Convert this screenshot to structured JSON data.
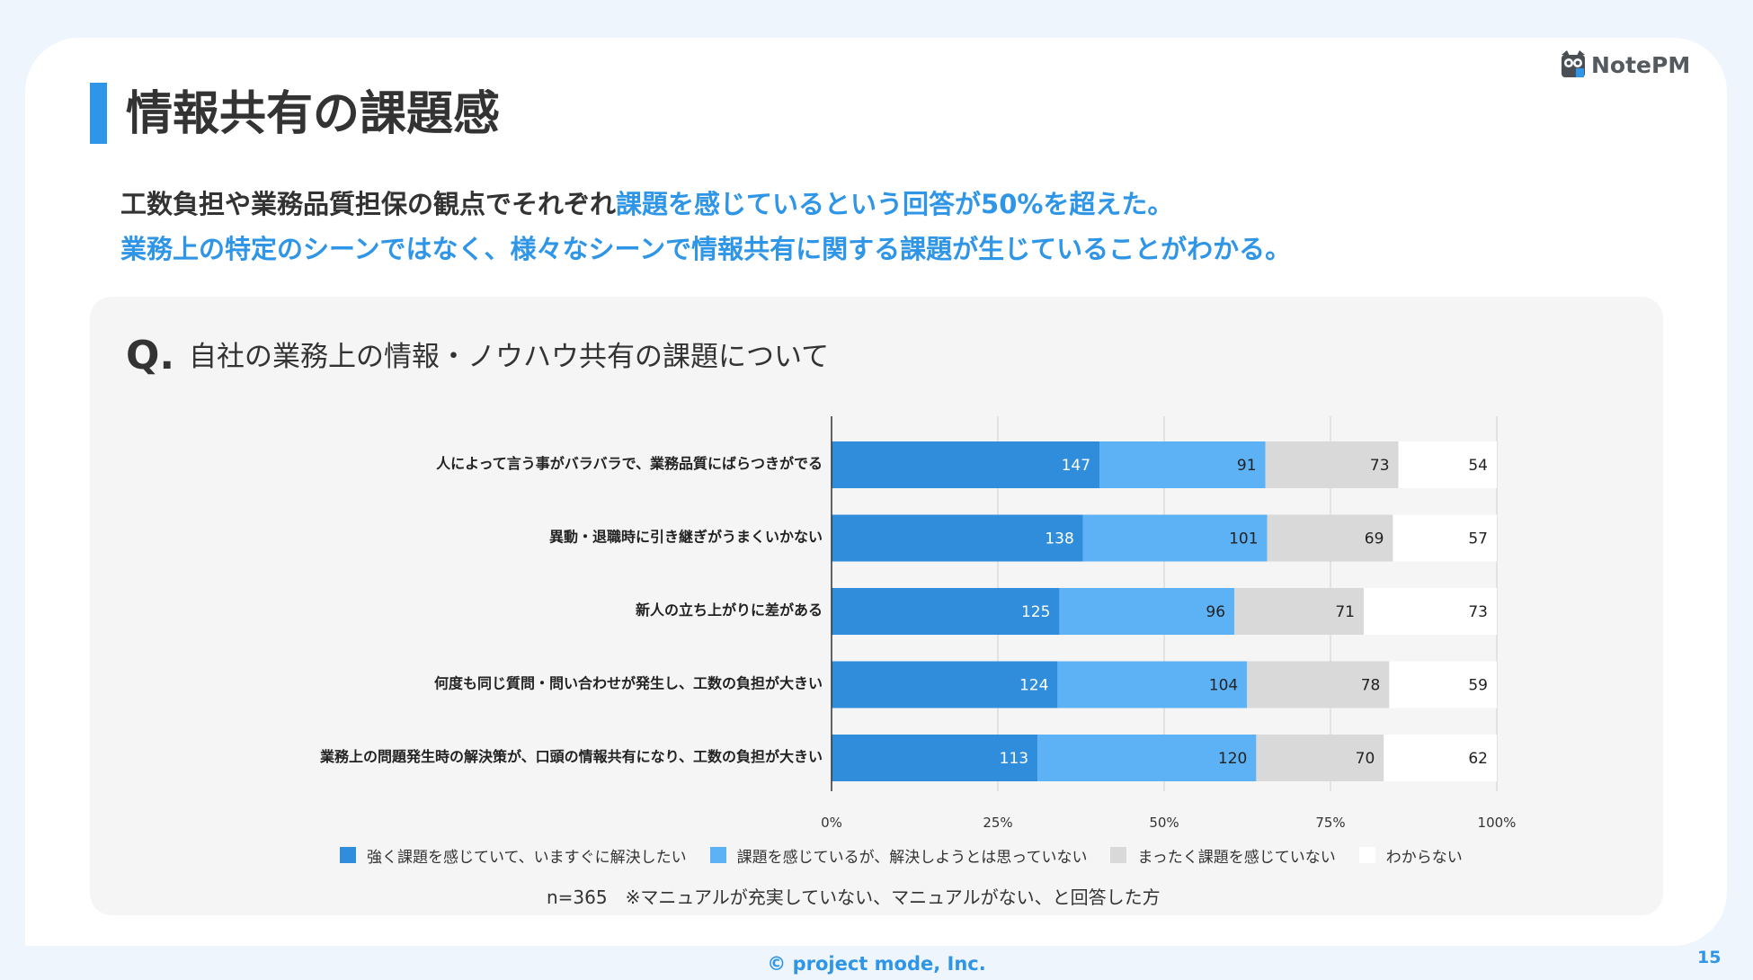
{
  "title": "情報共有の課題感",
  "logo": {
    "text": "NotePM",
    "icon": "owl-logo-icon"
  },
  "summary": {
    "line1_part1": "工数負担や業務品質担保の観点でそれぞれ",
    "line1_part2": "課題を感じているという回答が50%を超えた。",
    "line2": "業務上の特定のシーンではなく、様々なシーンで情報共有に関する課題が生じていることがわかる。"
  },
  "question": {
    "prefix": "Q.",
    "text": "自社の業務上の情報・ノウハウ共有の課題について"
  },
  "chart_data": {
    "type": "bar",
    "orientation": "horizontal",
    "stacked": "percent",
    "categories": [
      "人によって言う事がバラバラで、業務品質にばらつきがでる",
      "異動・退職時に引き継ぎがうまくいかない",
      "新人の立ち上がりに差がある",
      "何度も同じ質問・問い合わせが発生し、工数の負担が大きい",
      "業務上の問題発生時の解決策が、口頭の情報共有になり、工数の負担が大きい"
    ],
    "series": [
      {
        "name": "強く課題を感じていて、いますぐに解決したい",
        "color": "#2f8ddb",
        "label_color": "#ffffff",
        "values": [
          147,
          138,
          125,
          124,
          113
        ]
      },
      {
        "name": "課題を感じているが、解決しようとは思っていない",
        "color": "#5db2f5",
        "label_color": "#222222",
        "values": [
          91,
          101,
          96,
          104,
          120
        ]
      },
      {
        "name": "まったく課題を感じていない",
        "color": "#d9d9d9",
        "label_color": "#222222",
        "values": [
          73,
          69,
          71,
          78,
          70
        ]
      },
      {
        "name": "わからない",
        "color": "#ffffff",
        "label_color": "#222222",
        "values": [
          54,
          57,
          73,
          59,
          62
        ]
      }
    ],
    "x_ticks": [
      "0%",
      "25%",
      "50%",
      "75%",
      "100%"
    ],
    "xlim": [
      0,
      100
    ],
    "grid": true,
    "legend": "bottom"
  },
  "footnote": "n=365　※マニュアルが充実していない、マニュアルがない、と回答した方",
  "copyright": "© project mode, Inc.",
  "page_number": "15"
}
